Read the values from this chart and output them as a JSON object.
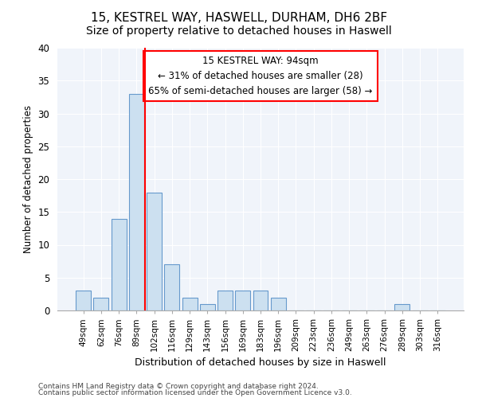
{
  "title1": "15, KESTREL WAY, HASWELL, DURHAM, DH6 2BF",
  "title2": "Size of property relative to detached houses in Haswell",
  "xlabel": "Distribution of detached houses by size in Haswell",
  "ylabel": "Number of detached properties",
  "categories": [
    "49sqm",
    "62sqm",
    "76sqm",
    "89sqm",
    "102sqm",
    "116sqm",
    "129sqm",
    "143sqm",
    "156sqm",
    "169sqm",
    "183sqm",
    "196sqm",
    "209sqm",
    "223sqm",
    "236sqm",
    "249sqm",
    "263sqm",
    "276sqm",
    "289sqm",
    "303sqm",
    "316sqm"
  ],
  "values": [
    3,
    2,
    14,
    33,
    18,
    7,
    2,
    1,
    3,
    3,
    3,
    2,
    0,
    0,
    0,
    0,
    0,
    0,
    1,
    0,
    0
  ],
  "bar_color": "#cce0f0",
  "bar_edge_color": "#6699cc",
  "red_line_x": 3.5,
  "annotation_line1": "15 KESTREL WAY: 94sqm",
  "annotation_line2": "← 31% of detached houses are smaller (28)",
  "annotation_line3": "65% of semi-detached houses are larger (58) →",
  "ylim": [
    0,
    40
  ],
  "yticks": [
    0,
    5,
    10,
    15,
    20,
    25,
    30,
    35,
    40
  ],
  "footer1": "Contains HM Land Registry data © Crown copyright and database right 2024.",
  "footer2": "Contains public sector information licensed under the Open Government Licence v3.0.",
  "bg_color": "#ffffff",
  "plot_bg_color": "#f0f4fa",
  "grid_color": "#ffffff",
  "title1_fontsize": 11,
  "title2_fontsize": 10
}
